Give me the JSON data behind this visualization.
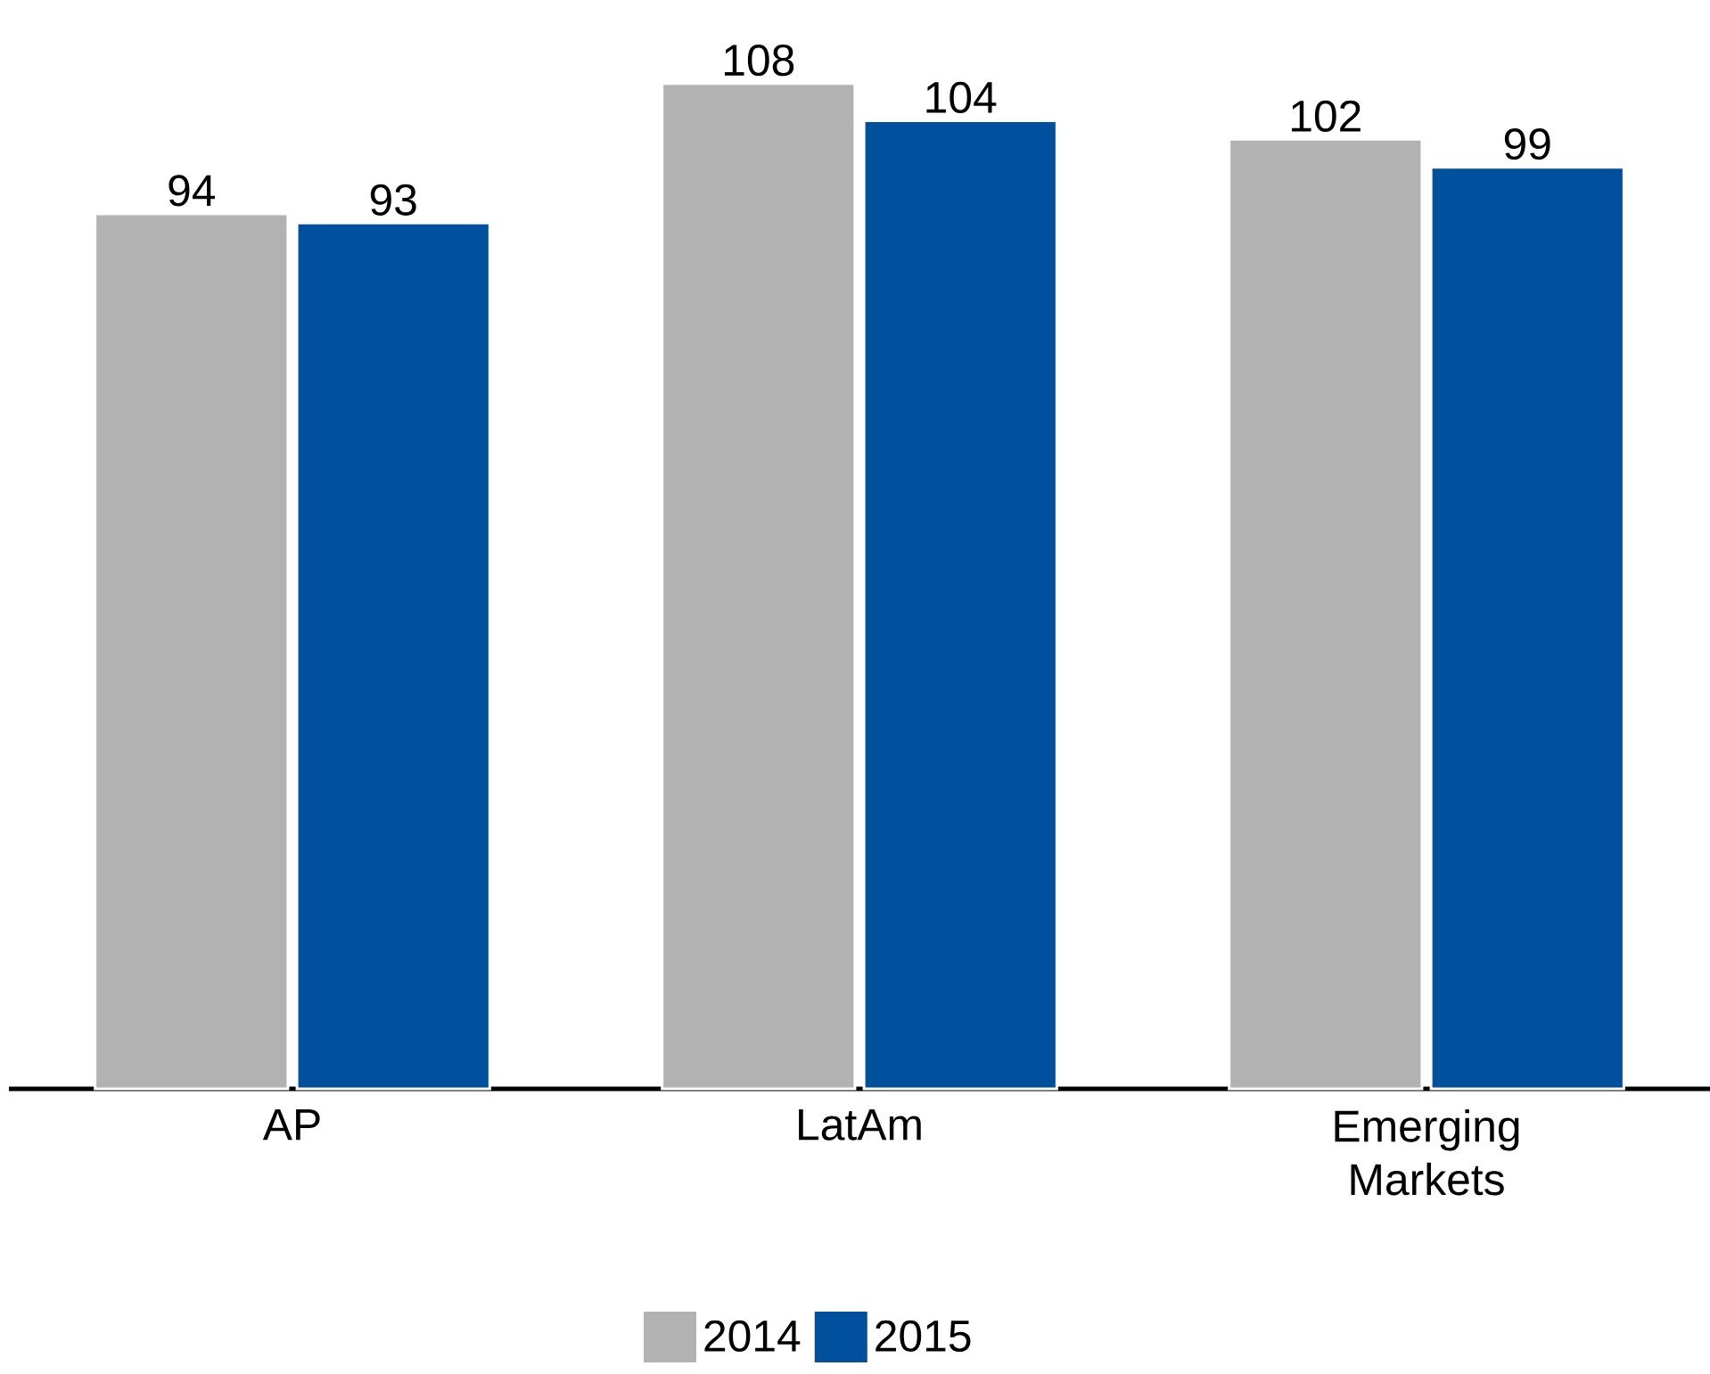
{
  "chart_data": {
    "type": "bar",
    "categories": [
      "AP",
      "LatAm",
      "Emerging Markets"
    ],
    "series": [
      {
        "name": "2014",
        "color": "#b2b2b2",
        "values": [
          94,
          108,
          102
        ]
      },
      {
        "name": "2015",
        "color": "#00509e",
        "values": [
          93,
          104,
          99
        ]
      }
    ],
    "tick_labels": "x",
    "data_labels": true,
    "legend": "bottom"
  }
}
